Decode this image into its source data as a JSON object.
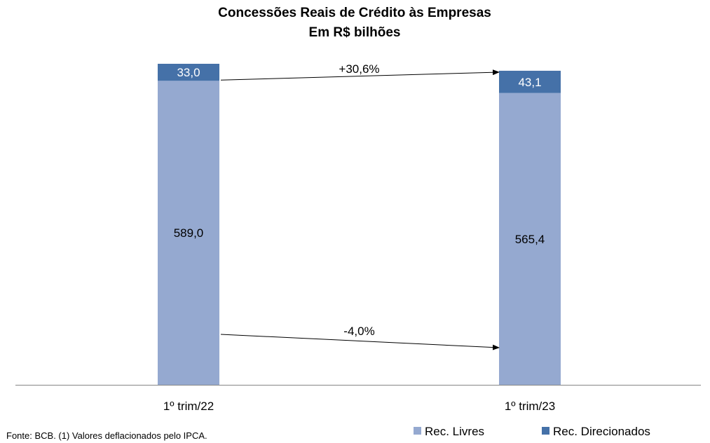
{
  "chart_data": {
    "type": "bar",
    "stacked": true,
    "title": "Concessões Reais de Crédito às Empresas",
    "subtitle": "Em R$ bilhões",
    "categories": [
      "1º trim/22",
      "1º trim/23"
    ],
    "series": [
      {
        "name": "Rec. Livres",
        "values": [
          589.0,
          565.4
        ],
        "labels": [
          "589,0",
          "565,4"
        ],
        "color": "#95a9d0"
      },
      {
        "name": "Rec. Direcionados",
        "values": [
          33.0,
          43.1
        ],
        "labels": [
          "33,0",
          "43,1"
        ],
        "color": "#4571a8"
      }
    ],
    "annotations": [
      {
        "text": "+30,6%",
        "series": "Rec. Direcionados",
        "from": "1º trim/22",
        "to": "1º trim/23"
      },
      {
        "text": "-4,0%",
        "series": "Rec. Livres",
        "from": "1º trim/22",
        "to": "1º trim/23"
      }
    ],
    "ylim": [
      0,
      622
    ],
    "legend": "bottom-right",
    "grid": false
  },
  "source_note": "Fonte: BCB. (1) Valores deflacionados pelo IPCA."
}
